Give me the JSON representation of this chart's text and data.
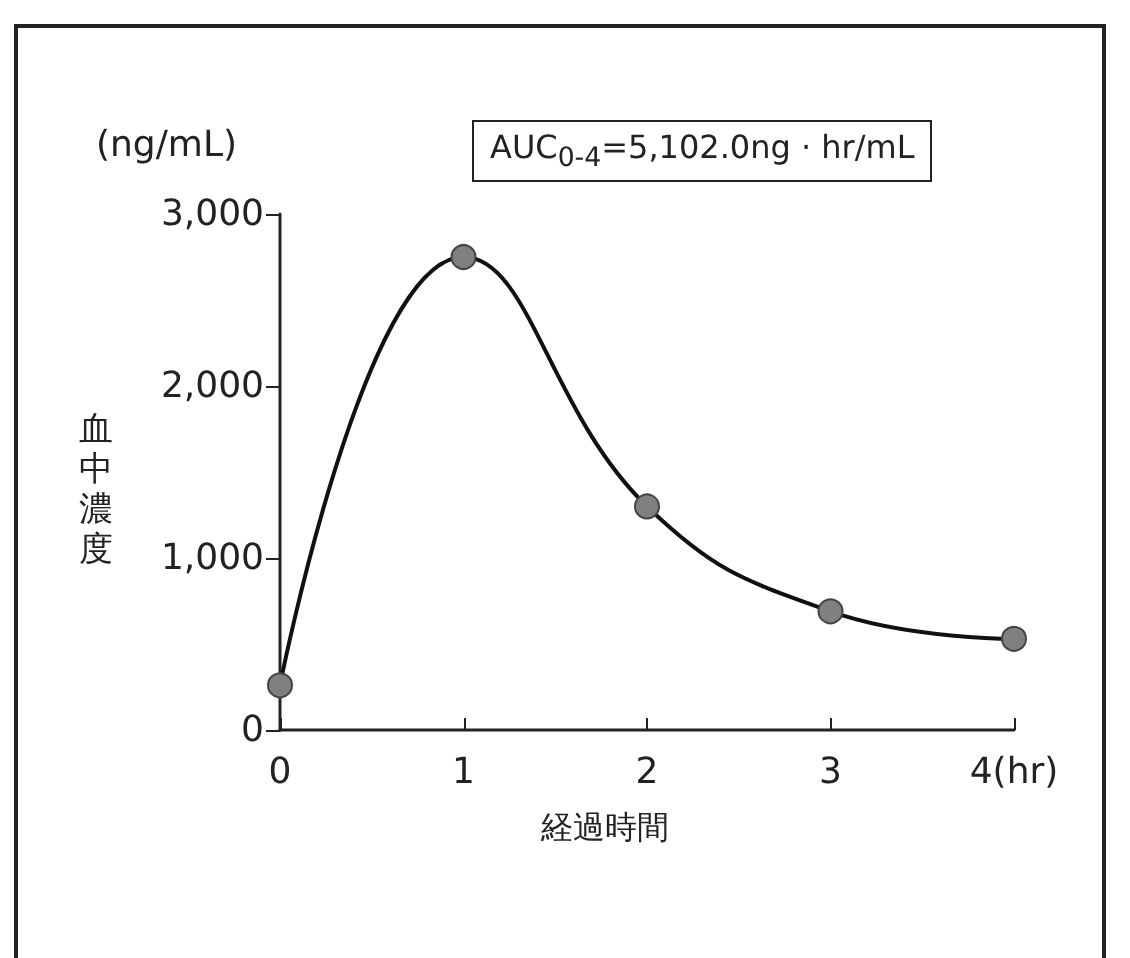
{
  "chart_data": {
    "type": "line",
    "xlabel": "経過時間",
    "ylabel": "血中濃度",
    "annotations": [
      "(ng/mL)",
      "AUC$_{0-4}$=5,102.0ng · hr/mL"
    ],
    "x": [
      0,
      1,
      2,
      3,
      4
    ],
    "series": [
      {
        "color": "#808080",
        "values": [
          260,
          2750,
          1300,
          690,
          530
        ]
      }
    ],
    "xlim": [
      0,
      4
    ],
    "xticks": [
      0,
      1,
      2,
      3,
      {
        "value": 4,
        "label": "4(hr)"
      }
    ],
    "ylim": [
      0,
      3000
    ],
    "yticks": [
      {
        "value": 0,
        "label": "0"
      },
      {
        "value": 1000,
        "label": "1,000"
      },
      {
        "value": 2000,
        "label": "2,000"
      },
      {
        "value": 3000,
        "label": "3,000"
      }
    ],
    "grid": false,
    "marker": "circle",
    "line_style": "solid"
  }
}
